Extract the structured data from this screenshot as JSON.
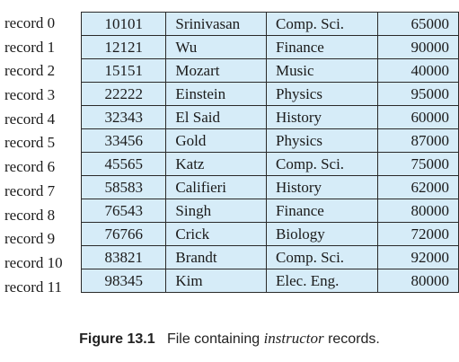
{
  "records": [
    {
      "label": "record 0",
      "id": "10101",
      "name": "Srinivasan",
      "dept": "Comp. Sci.",
      "salary": "65000"
    },
    {
      "label": "record 1",
      "id": "12121",
      "name": "Wu",
      "dept": "Finance",
      "salary": "90000"
    },
    {
      "label": "record 2",
      "id": "15151",
      "name": "Mozart",
      "dept": "Music",
      "salary": "40000"
    },
    {
      "label": "record 3",
      "id": "22222",
      "name": "Einstein",
      "dept": "Physics",
      "salary": "95000"
    },
    {
      "label": "record 4",
      "id": "32343",
      "name": "El Said",
      "dept": "History",
      "salary": "60000"
    },
    {
      "label": "record 5",
      "id": "33456",
      "name": "Gold",
      "dept": "Physics",
      "salary": "87000"
    },
    {
      "label": "record 6",
      "id": "45565",
      "name": "Katz",
      "dept": "Comp. Sci.",
      "salary": "75000"
    },
    {
      "label": "record 7",
      "id": "58583",
      "name": "Califieri",
      "dept": "History",
      "salary": "62000"
    },
    {
      "label": "record 8",
      "id": "76543",
      "name": "Singh",
      "dept": "Finance",
      "salary": "80000"
    },
    {
      "label": "record 9",
      "id": "76766",
      "name": "Crick",
      "dept": "Biology",
      "salary": "72000"
    },
    {
      "label": "record 10",
      "id": "83821",
      "name": "Brandt",
      "dept": "Comp. Sci.",
      "salary": "92000"
    },
    {
      "label": "record 11",
      "id": "98345",
      "name": "Kim",
      "dept": "Elec. Eng.",
      "salary": "80000"
    }
  ],
  "caption": {
    "number": "Figure 13.1",
    "text_before": "File containing",
    "italic": "instructor",
    "text_after": "records."
  },
  "colors": {
    "cell_fill": "#d6ecf8",
    "border": "#2a2a2a"
  }
}
